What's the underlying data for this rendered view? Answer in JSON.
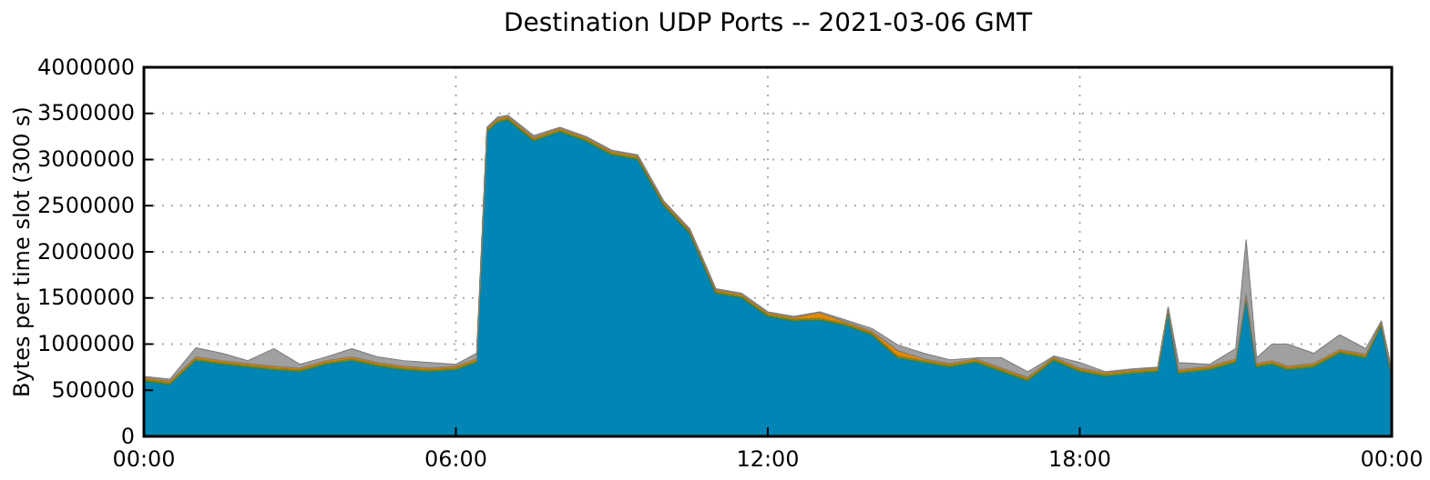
{
  "chart_data": {
    "type": "area",
    "stacked": true,
    "title": "Destination UDP Ports -- 2021-03-06 GMT",
    "ylabel": "Bytes per time slot (300 s)",
    "x": [
      0,
      0.5,
      1,
      1.5,
      2,
      2.5,
      3,
      3.5,
      4,
      4.5,
      5,
      5.5,
      6,
      6.4,
      6.6,
      6.8,
      7,
      7.5,
      8,
      8.5,
      9,
      9.5,
      10,
      10.5,
      11,
      11.5,
      12,
      12.5,
      13,
      13.5,
      14,
      14.5,
      15,
      15.5,
      16,
      16.5,
      17,
      17.5,
      18,
      18.5,
      19,
      19.5,
      19.7,
      19.9,
      20.5,
      21,
      21.2,
      21.4,
      21.7,
      22,
      22.5,
      23,
      23.5,
      23.8,
      24
    ],
    "xlim": [
      0,
      24
    ],
    "xticks": [
      {
        "value": 0,
        "label": "00:00"
      },
      {
        "value": 6,
        "label": "06:00"
      },
      {
        "value": 12,
        "label": "12:00"
      },
      {
        "value": 18,
        "label": "18:00"
      },
      {
        "value": 24,
        "label": "00:00"
      }
    ],
    "ylim": [
      0,
      4000000
    ],
    "yticks": [
      0,
      500000,
      1000000,
      1500000,
      2000000,
      2500000,
      3000000,
      3500000,
      4000000
    ],
    "grid": true,
    "series": [
      {
        "color": "#0085b5",
        "values": [
          600000,
          560000,
          820000,
          780000,
          750000,
          720000,
          700000,
          780000,
          820000,
          760000,
          720000,
          700000,
          720000,
          800000,
          3300000,
          3400000,
          3430000,
          3200000,
          3300000,
          3200000,
          3050000,
          3000000,
          2500000,
          2200000,
          1550000,
          1500000,
          1300000,
          1250000,
          1260000,
          1200000,
          1100000,
          850000,
          800000,
          750000,
          800000,
          700000,
          600000,
          820000,
          700000,
          650000,
          680000,
          700000,
          1350000,
          680000,
          720000,
          800000,
          1500000,
          750000,
          780000,
          720000,
          750000,
          900000,
          850000,
          1200000,
          650000
        ]
      },
      {
        "color": "#5a9e3a",
        "values": [
          20000,
          20000,
          20000,
          20000,
          20000,
          20000,
          20000,
          20000,
          20000,
          20000,
          20000,
          20000,
          20000,
          20000,
          20000,
          20000,
          20000,
          20000,
          20000,
          20000,
          20000,
          20000,
          20000,
          20000,
          20000,
          20000,
          20000,
          20000,
          20000,
          20000,
          20000,
          20000,
          20000,
          20000,
          20000,
          20000,
          20000,
          20000,
          20000,
          20000,
          20000,
          20000,
          20000,
          20000,
          20000,
          20000,
          20000,
          20000,
          20000,
          20000,
          20000,
          20000,
          20000,
          20000,
          20000
        ]
      },
      {
        "color": "#e58a00",
        "values": [
          20000,
          20000,
          20000,
          20000,
          20000,
          20000,
          20000,
          20000,
          20000,
          20000,
          20000,
          20000,
          20000,
          20000,
          20000,
          20000,
          20000,
          20000,
          20000,
          20000,
          20000,
          20000,
          20000,
          20000,
          20000,
          20000,
          20000,
          20000,
          60000,
          20000,
          20000,
          60000,
          20000,
          20000,
          20000,
          20000,
          20000,
          20000,
          20000,
          20000,
          20000,
          20000,
          20000,
          20000,
          20000,
          20000,
          20000,
          20000,
          20000,
          20000,
          20000,
          20000,
          20000,
          20000,
          20000
        ]
      },
      {
        "color": "#a0a0a0",
        "values": [
          10000,
          20000,
          100000,
          80000,
          30000,
          190000,
          40000,
          40000,
          90000,
          60000,
          60000,
          60000,
          20000,
          60000,
          10000,
          20000,
          10000,
          20000,
          10000,
          10000,
          10000,
          10000,
          10000,
          10000,
          10000,
          10000,
          10000,
          10000,
          10000,
          20000,
          30000,
          60000,
          60000,
          40000,
          10000,
          110000,
          60000,
          10000,
          60000,
          10000,
          10000,
          10000,
          10000,
          80000,
          20000,
          110000,
          590000,
          60000,
          180000,
          240000,
          110000,
          160000,
          60000,
          10000,
          30000
        ]
      }
    ]
  }
}
